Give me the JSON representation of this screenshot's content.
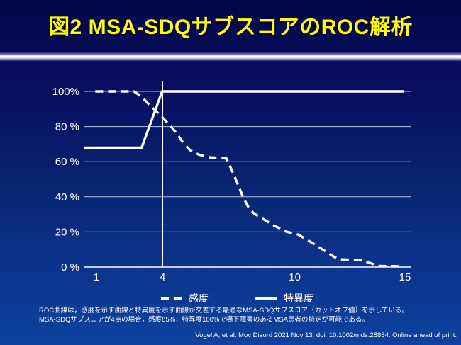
{
  "slide": {
    "title": "図2 MSA-SDQサブスコアのROC解析",
    "footnote_line1": "ROC曲線は，感度を示す曲線と特異度を示す曲線が交差する最適なMSA-SDQサブスコア（カットオフ値）を示している。",
    "footnote_line2": "MSA-SDQサブスコアが4点の場合，感度85%，特異度100%で嚥下障害のあるMSA患者の特定が可能である。",
    "citation": "Vogel A, et al. Mov Disord 2021 Nov 13. doi: 10.1002/mds.28854. Online ahead of print.",
    "colors": {
      "title_text": "#ffff00",
      "background_top": "#050548",
      "background_bottom": "#0d429e",
      "line_color": "#ffffff",
      "gridline_color": "#c8d2f0"
    }
  },
  "chart_data": {
    "type": "line",
    "title": "",
    "xlabel": "",
    "ylabel": "",
    "x_ticks": [
      1,
      4,
      10,
      15
    ],
    "y_ticks": [
      0,
      20,
      40,
      60,
      80,
      100
    ],
    "y_tick_labels": [
      "0 %",
      "20 %",
      "40 %",
      "60 %",
      "80 %",
      "100%"
    ],
    "xlim": [
      0.4,
      15.3
    ],
    "ylim": [
      0,
      100
    ],
    "grid": "horizontal",
    "cutoff_line_x": 4,
    "legend_position": "bottom",
    "legend": [
      {
        "name": "感度",
        "style": "dashed"
      },
      {
        "name": "特異度",
        "style": "solid"
      }
    ],
    "series": [
      {
        "name": "感度",
        "style": "dashed",
        "points": [
          [
            0.95,
            100
          ],
          [
            2.7,
            100
          ],
          [
            3.05,
            97
          ],
          [
            3.35,
            93
          ],
          [
            3.65,
            89.5
          ],
          [
            4,
            85
          ],
          [
            4.35,
            80.5
          ],
          [
            4.65,
            76
          ],
          [
            4.95,
            70.5
          ],
          [
            5.25,
            66.5
          ],
          [
            5.65,
            64
          ],
          [
            6.1,
            62.5
          ],
          [
            6.9,
            61.8
          ],
          [
            7.25,
            52
          ],
          [
            7.65,
            40
          ],
          [
            7.9,
            34
          ],
          [
            8.15,
            30.5
          ],
          [
            8.55,
            27.5
          ],
          [
            9,
            24
          ],
          [
            9.6,
            20.2
          ],
          [
            10.15,
            18.5
          ],
          [
            10.8,
            13.7
          ],
          [
            11.35,
            9.3
          ],
          [
            11.8,
            5.7
          ],
          [
            12.1,
            4.4
          ],
          [
            12.95,
            4
          ],
          [
            13.4,
            2.4
          ],
          [
            13.8,
            0.6
          ],
          [
            14.95,
            0.4
          ]
        ]
      },
      {
        "name": "特異度",
        "style": "solid",
        "points": [
          [
            0.42,
            68
          ],
          [
            3.05,
            68
          ],
          [
            3.98,
            100
          ],
          [
            14.95,
            100
          ]
        ]
      }
    ]
  }
}
